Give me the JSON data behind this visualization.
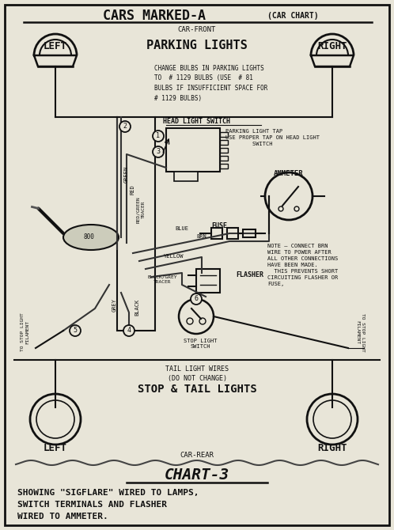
{
  "bg_color": "#e8e5d8",
  "border_color": "#111111",
  "title_main": "CARS MARKED-A",
  "title_sub": "(CAR CHART)",
  "car_front_label": "CAR-FRONT",
  "left_label": "LEFT",
  "right_label": "RIGHT",
  "parking_lights_title": "PARKING LIGHTS",
  "parking_text": "CHANGE BULBS IN PARKING LIGHTS\nTO  # 1129 BULBS (USE  # 81\nBULBS IF INSUFFICIENT SPACE FOR\n# 1129 BULBS)",
  "head_light_switch_label": "HEAD LIGHT SWITCH",
  "parking_light_tap": "PARKING LIGHT TAP\nUSE PROPER TAP ON HEAD LIGHT\n        SWITCH",
  "ammeter_label": "AMMETER",
  "fuse_label": "FUSE",
  "flasher_label": "FLASHER",
  "note_text": "NOTE — CONNECT BRN\nWIRE TO POWER AFTER\nALL OTHER CONNECTIONS\nHAVE BEEN MADE.\n  THIS PREVENTS SHORT\nCIRCUITING FLASHER OR\nFUSE,",
  "stop_light_switch_label": "STOP LIGHT\nSWITCH",
  "to_stop_left": "TO STOP LIGHT\nFILAMENT",
  "to_stop_right": "TO STOP LIGHT\nFILAMENT",
  "tail_light_wires": "TAIL LIGHT WIRES\n(DO NOT CHANGE)",
  "stop_tail_label": "STOP & TAIL LIGHTS",
  "left_rear_label": "LEFT",
  "right_rear_label": "RIGHT",
  "car_rear_label": "CAR-REAR",
  "chart_label": "CHART-3",
  "bottom_text": "SHOWING \"SIGFLARE\" WIRED TO LAMPS,\nSWITCH TERMINALS AND FLASHER\nWIRED TO AMMETER."
}
